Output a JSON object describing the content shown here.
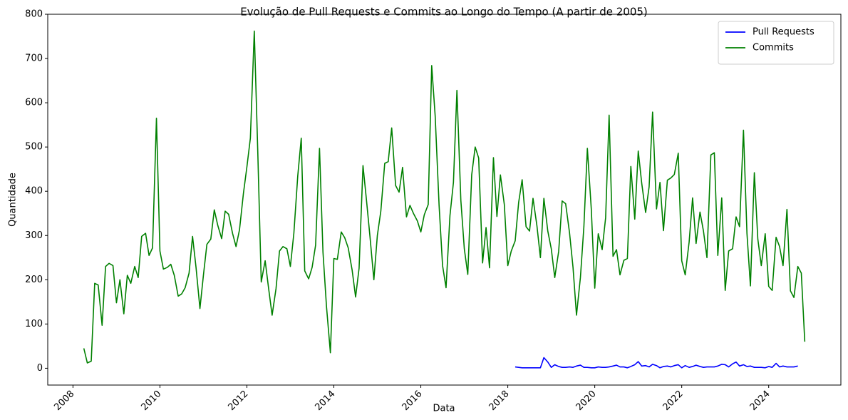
{
  "chart_data": {
    "type": "line",
    "title": "Evolução de Pull Requests e Commits ao Longo do Tempo (A partir de 2005)",
    "xlabel": "Data",
    "ylabel": "Quantidade",
    "xlim": [
      2007.42,
      2025.66
    ],
    "xticks": [
      2008,
      2010,
      2012,
      2014,
      2016,
      2018,
      2020,
      2022,
      2024
    ],
    "ylim": [
      -38,
      800
    ],
    "yticks": [
      0,
      100,
      200,
      300,
      400,
      500,
      600,
      700,
      800
    ],
    "grid": false,
    "legend": "upper right",
    "series": [
      {
        "name": "Pull Requests",
        "color": "#0000ff",
        "x": [
          2018.17,
          2018.25,
          2018.33,
          2018.42,
          2018.5,
          2018.58,
          2018.67,
          2018.75,
          2018.83,
          2018.92,
          2019.0,
          2019.08,
          2019.17,
          2019.25,
          2019.33,
          2019.42,
          2019.5,
          2019.58,
          2019.67,
          2019.75,
          2019.83,
          2019.92,
          2020.0,
          2020.08,
          2020.17,
          2020.25,
          2020.33,
          2020.42,
          2020.5,
          2020.58,
          2020.67,
          2020.75,
          2020.83,
          2020.92,
          2021.0,
          2021.08,
          2021.17,
          2021.25,
          2021.33,
          2021.42,
          2021.5,
          2021.58,
          2021.67,
          2021.75,
          2021.83,
          2021.92,
          2022.0,
          2022.08,
          2022.17,
          2022.25,
          2022.33,
          2022.42,
          2022.5,
          2022.58,
          2022.67,
          2022.75,
          2022.83,
          2022.92,
          2023.0,
          2023.08,
          2023.17,
          2023.25,
          2023.33,
          2023.42,
          2023.5,
          2023.58,
          2023.67,
          2023.75,
          2023.83,
          2023.92,
          2024.0,
          2024.08,
          2024.17,
          2024.25,
          2024.33,
          2024.42,
          2024.5,
          2024.58,
          2024.67
        ],
        "values": [
          3,
          2,
          1,
          1,
          1,
          1,
          1,
          1,
          24,
          14,
          2,
          8,
          4,
          2,
          2,
          3,
          2,
          5,
          7,
          2,
          2,
          1,
          1,
          3,
          2,
          2,
          3,
          5,
          7,
          3,
          3,
          1,
          4,
          8,
          15,
          5,
          6,
          3,
          9,
          6,
          1,
          4,
          5,
          3,
          6,
          8,
          1,
          6,
          2,
          4,
          7,
          4,
          2,
          3,
          3,
          3,
          5,
          9,
          8,
          3,
          10,
          14,
          5,
          8,
          4,
          5,
          2,
          2,
          2,
          1,
          4,
          2,
          11,
          3,
          5,
          3,
          3,
          3,
          5
        ]
      },
      {
        "name": "Commits",
        "color": "#008000",
        "x": [
          2008.25,
          2008.33,
          2008.42,
          2008.5,
          2008.58,
          2008.67,
          2008.75,
          2008.83,
          2008.92,
          2009.0,
          2009.08,
          2009.17,
          2009.25,
          2009.33,
          2009.42,
          2009.5,
          2009.58,
          2009.67,
          2009.75,
          2009.83,
          2009.92,
          2010.0,
          2010.08,
          2010.17,
          2010.25,
          2010.33,
          2010.42,
          2010.5,
          2010.58,
          2010.67,
          2010.75,
          2010.83,
          2010.92,
          2011.0,
          2011.08,
          2011.17,
          2011.25,
          2011.33,
          2011.42,
          2011.5,
          2011.58,
          2011.67,
          2011.75,
          2011.83,
          2011.92,
          2012.0,
          2012.08,
          2012.17,
          2012.25,
          2012.33,
          2012.42,
          2012.5,
          2012.58,
          2012.67,
          2012.75,
          2012.83,
          2012.92,
          2013.0,
          2013.08,
          2013.17,
          2013.25,
          2013.33,
          2013.42,
          2013.5,
          2013.58,
          2013.67,
          2013.75,
          2013.83,
          2013.92,
          2014.0,
          2014.08,
          2014.17,
          2014.25,
          2014.33,
          2014.42,
          2014.5,
          2014.58,
          2014.67,
          2014.75,
          2014.83,
          2014.92,
          2015.0,
          2015.08,
          2015.17,
          2015.25,
          2015.33,
          2015.42,
          2015.5,
          2015.58,
          2015.67,
          2015.75,
          2015.83,
          2015.92,
          2016.0,
          2016.08,
          2016.17,
          2016.25,
          2016.33,
          2016.42,
          2016.5,
          2016.58,
          2016.67,
          2016.75,
          2016.83,
          2016.92,
          2017.0,
          2017.08,
          2017.17,
          2017.25,
          2017.33,
          2017.42,
          2017.5,
          2017.58,
          2017.67,
          2017.75,
          2017.83,
          2017.92,
          2018.0,
          2018.08,
          2018.17,
          2018.25,
          2018.33,
          2018.42,
          2018.5,
          2018.58,
          2018.67,
          2018.75,
          2018.83,
          2018.92,
          2019.0,
          2019.08,
          2019.17,
          2019.25,
          2019.33,
          2019.42,
          2019.5,
          2019.58,
          2019.67,
          2019.75,
          2019.83,
          2019.92,
          2020.0,
          2020.08,
          2020.17,
          2020.25,
          2020.33,
          2020.42,
          2020.5,
          2020.58,
          2020.67,
          2020.75,
          2020.83,
          2020.92,
          2021.0,
          2021.08,
          2021.17,
          2021.25,
          2021.33,
          2021.42,
          2021.5,
          2021.58,
          2021.67,
          2021.75,
          2021.83,
          2021.92,
          2022.0,
          2022.08,
          2022.17,
          2022.25,
          2022.33,
          2022.42,
          2022.5,
          2022.58,
          2022.67,
          2022.75,
          2022.83,
          2022.92,
          2023.0,
          2023.08,
          2023.17,
          2023.25,
          2023.33,
          2023.42,
          2023.5,
          2023.58,
          2023.67,
          2023.75,
          2023.83,
          2023.92,
          2024.0,
          2024.08,
          2024.17,
          2024.25,
          2024.33,
          2024.42,
          2024.5,
          2024.58,
          2024.67,
          2024.75,
          2024.83
        ],
        "values": [
          45,
          12,
          16,
          192,
          188,
          97,
          230,
          237,
          232,
          148,
          200,
          123,
          210,
          192,
          230,
          205,
          298,
          305,
          255,
          272,
          565,
          265,
          224,
          228,
          235,
          210,
          163,
          168,
          182,
          215,
          298,
          228,
          135,
          210,
          280,
          292,
          358,
          323,
          293,
          355,
          348,
          305,
          275,
          313,
          395,
          455,
          520,
          762,
          490,
          195,
          243,
          180,
          120,
          180,
          265,
          275,
          270,
          230,
          305,
          435,
          520,
          220,
          202,
          228,
          278,
          497,
          262,
          140,
          35,
          248,
          246,
          308,
          295,
          272,
          222,
          161,
          226,
          458,
          380,
          298,
          200,
          300,
          355,
          463,
          467,
          543,
          413,
          398,
          454,
          342,
          368,
          350,
          333,
          308,
          347,
          370,
          684,
          570,
          368,
          232,
          182,
          345,
          420,
          628,
          380,
          270,
          212,
          437,
          500,
          475,
          238,
          318,
          227,
          476,
          343,
          437,
          370,
          232,
          265,
          288,
          375,
          426,
          320,
          310,
          384,
          322,
          250,
          384,
          310,
          270,
          205,
          264,
          378,
          372,
          306,
          228,
          120,
          205,
          320,
          497,
          360,
          181,
          304,
          268,
          340,
          572,
          253,
          268,
          211,
          244,
          248,
          456,
          337,
          491,
          418,
          352,
          410,
          579,
          360,
          420,
          311,
          425,
          430,
          438,
          486,
          243,
          211,
          285,
          385,
          282,
          353,
          310,
          250,
          482,
          487,
          255,
          385,
          176,
          265,
          270,
          342,
          320,
          538,
          305,
          186,
          442,
          292,
          232,
          304,
          185,
          176,
          296,
          275,
          232,
          359,
          175,
          160,
          230,
          215,
          60
        ]
      }
    ]
  }
}
